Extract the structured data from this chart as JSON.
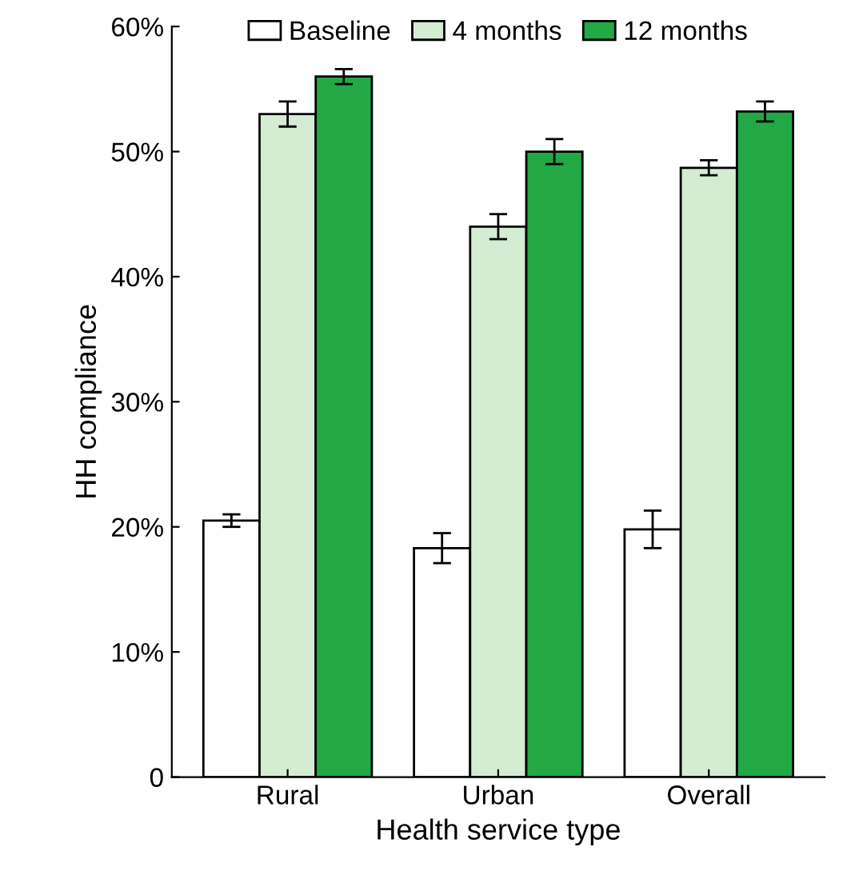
{
  "chart_data": {
    "type": "bar",
    "xlabel": "Health service type",
    "ylabel": "HH compliance",
    "categories": [
      "Rural",
      "Urban",
      "Overall"
    ],
    "series": [
      {
        "name": "Baseline",
        "color": "#ffffff",
        "values": [
          20.5,
          18.3,
          19.8
        ],
        "errors": [
          0.5,
          1.2,
          1.5
        ]
      },
      {
        "name": "4 months",
        "color": "#d4ecd2",
        "values": [
          53,
          44,
          48.7
        ],
        "errors": [
          1,
          1,
          0.6
        ]
      },
      {
        "name": "12 months",
        "color": "#22a845",
        "values": [
          56,
          50,
          53.2
        ],
        "errors": [
          0.6,
          1,
          0.8
        ]
      }
    ],
    "ylim": [
      0,
      60
    ],
    "yticks": [
      {
        "value": 0,
        "label": "0"
      },
      {
        "value": 10,
        "label": "10%"
      },
      {
        "value": 20,
        "label": "20%"
      },
      {
        "value": 30,
        "label": "30%"
      },
      {
        "value": 40,
        "label": "40%"
      },
      {
        "value": 50,
        "label": "50%"
      },
      {
        "value": 60,
        "label": "60%"
      }
    ],
    "legend": "top",
    "grid": false
  }
}
